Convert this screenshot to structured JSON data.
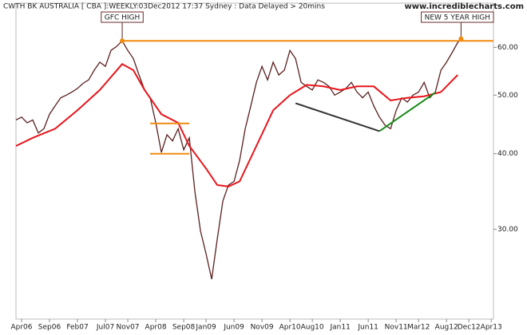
{
  "chart_data": {
    "type": "line",
    "title": "CWTH BK AUSTRALIA [ CBA ]:WEEKLY:03Dec2012 17:37 Sydney : Data Delayed > 20mins",
    "watermark": "www.incrediblecharts.com",
    "log_scale": true,
    "ylim": [
      21.3,
      71
    ],
    "yticks": [
      {
        "value": 30,
        "label": "30.00"
      },
      {
        "value": 40,
        "label": "40.00"
      },
      {
        "value": 50,
        "label": "50.00"
      },
      {
        "value": 60,
        "label": "60.00"
      }
    ],
    "xlim": [
      -1,
      84.4
    ],
    "xticks": [
      {
        "value": 0,
        "label": "Apr06"
      },
      {
        "value": 5,
        "label": "Sep06"
      },
      {
        "value": 10,
        "label": "Feb07"
      },
      {
        "value": 15,
        "label": "Jul07"
      },
      {
        "value": 19,
        "label": "Nov07"
      },
      {
        "value": 24,
        "label": "Apr08"
      },
      {
        "value": 29,
        "label": "Sep08"
      },
      {
        "value": 33,
        "label": "Jan09"
      },
      {
        "value": 38,
        "label": "Jun09"
      },
      {
        "value": 43,
        "label": "Nov09"
      },
      {
        "value": 48,
        "label": "Apr10"
      },
      {
        "value": 52,
        "label": "Aug10"
      },
      {
        "value": 57,
        "label": "Jan11"
      },
      {
        "value": 62,
        "label": "Jun11"
      },
      {
        "value": 67,
        "label": "Nov11"
      },
      {
        "value": 71,
        "label": "Mar12"
      },
      {
        "value": 76,
        "label": "Aug12"
      },
      {
        "value": 80,
        "label": "Dec12"
      },
      {
        "value": 84,
        "label": "Apr13"
      }
    ],
    "series": [
      {
        "color": "#5a1f1f",
        "width": 1.3,
        "x": [
          -1,
          0,
          1,
          2,
          3,
          4,
          5,
          6,
          7,
          8,
          9,
          10,
          11,
          12,
          13,
          14,
          15,
          16,
          17,
          18,
          19,
          20,
          21,
          22,
          23,
          24,
          25,
          26,
          27,
          28,
          29,
          30,
          31,
          32,
          33,
          34,
          35,
          36,
          37,
          38,
          39,
          40,
          41,
          42,
          43,
          44,
          45,
          46,
          47,
          48,
          49,
          50,
          51,
          52,
          53,
          54,
          55,
          56,
          57,
          58,
          59,
          60,
          61,
          62,
          63,
          64,
          65,
          66,
          67,
          68,
          69,
          70,
          71,
          72,
          73,
          74,
          75,
          76,
          77,
          78,
          78.6
        ],
        "values": [
          45.5,
          46,
          45,
          45.5,
          43.3,
          44,
          46.5,
          48,
          49.5,
          50,
          50.6,
          51.3,
          52.3,
          53,
          55,
          56.7,
          55.8,
          59.3,
          60.2,
          61.5,
          59.3,
          57.5,
          54,
          51,
          49.5,
          45,
          40.2,
          43,
          42,
          44,
          40.6,
          42.5,
          34.6,
          29.8,
          27.3,
          24.8,
          28.9,
          33.4,
          35.5,
          36,
          39,
          44,
          48,
          52.5,
          55.8,
          53,
          56.7,
          54,
          55,
          59.3,
          57.5,
          52.5,
          51.7,
          51,
          53,
          52.5,
          51.7,
          50,
          50.6,
          51.3,
          52.5,
          50.6,
          49.5,
          50.6,
          48,
          46,
          44.6,
          44,
          47.2,
          49.5,
          48.7,
          50,
          50.6,
          52.5,
          49.5,
          50.6,
          55,
          56.7,
          58.8,
          61.1,
          62
        ]
      },
      {
        "color": "#e8141b",
        "width": 2,
        "x": [
          -1,
          2,
          6,
          10,
          14,
          18,
          20,
          22,
          25,
          28,
          30,
          33,
          35,
          37,
          39,
          42,
          45,
          48,
          51,
          54,
          57,
          60,
          63,
          66,
          69,
          72,
          75,
          78
        ],
        "values": [
          41.2,
          42.5,
          44,
          47.2,
          51,
          56.3,
          55,
          51,
          46.5,
          45,
          41.2,
          37.8,
          35.5,
          35.3,
          36,
          41.2,
          47.2,
          50,
          52,
          51.7,
          51,
          51.7,
          51.7,
          49,
          49.5,
          49.8,
          50.6,
          54
        ]
      }
    ],
    "trend_lines": [
      {
        "color": "#f08a10",
        "x": [
          18,
          84.4
        ],
        "values": [
          61.5,
          61.5
        ]
      },
      {
        "color": "#f08a10",
        "x": [
          23,
          30
        ],
        "values": [
          44.9,
          44.9
        ]
      },
      {
        "color": "#f08a10",
        "x": [
          23,
          30
        ],
        "values": [
          40,
          40
        ]
      },
      {
        "color": "#333333",
        "x": [
          49,
          64
        ],
        "values": [
          48.5,
          43.6
        ]
      },
      {
        "color": "#1a8a1a",
        "x": [
          64,
          74
        ],
        "values": [
          43.6,
          50.5
        ]
      }
    ],
    "annotations": [
      {
        "text": "GFC HIGH",
        "x": 18,
        "value": 61.5
      },
      {
        "text": "NEW 5 YEAR HIGH",
        "x": 78.6,
        "value": 62
      }
    ]
  }
}
